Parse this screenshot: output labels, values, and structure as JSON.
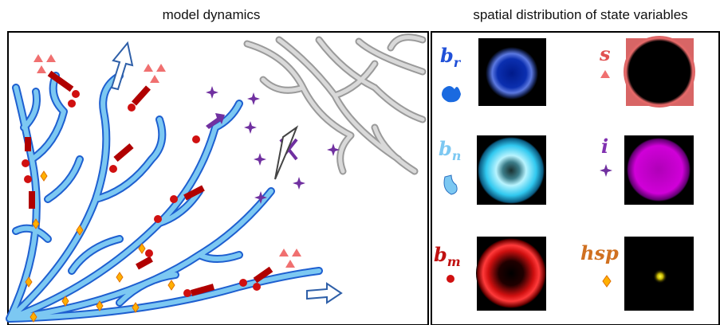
{
  "header": {
    "left_title": "model dynamics",
    "right_title": "spatial distribution of state variables"
  },
  "variables": [
    {
      "symbol": "b",
      "subscript": "r"
    },
    {
      "symbol": "s"
    },
    {
      "symbol": "b",
      "subscript": "n"
    },
    {
      "symbol": "i"
    },
    {
      "symbol": "b",
      "subscript": "m"
    },
    {
      "symbol": "hsp"
    }
  ]
}
